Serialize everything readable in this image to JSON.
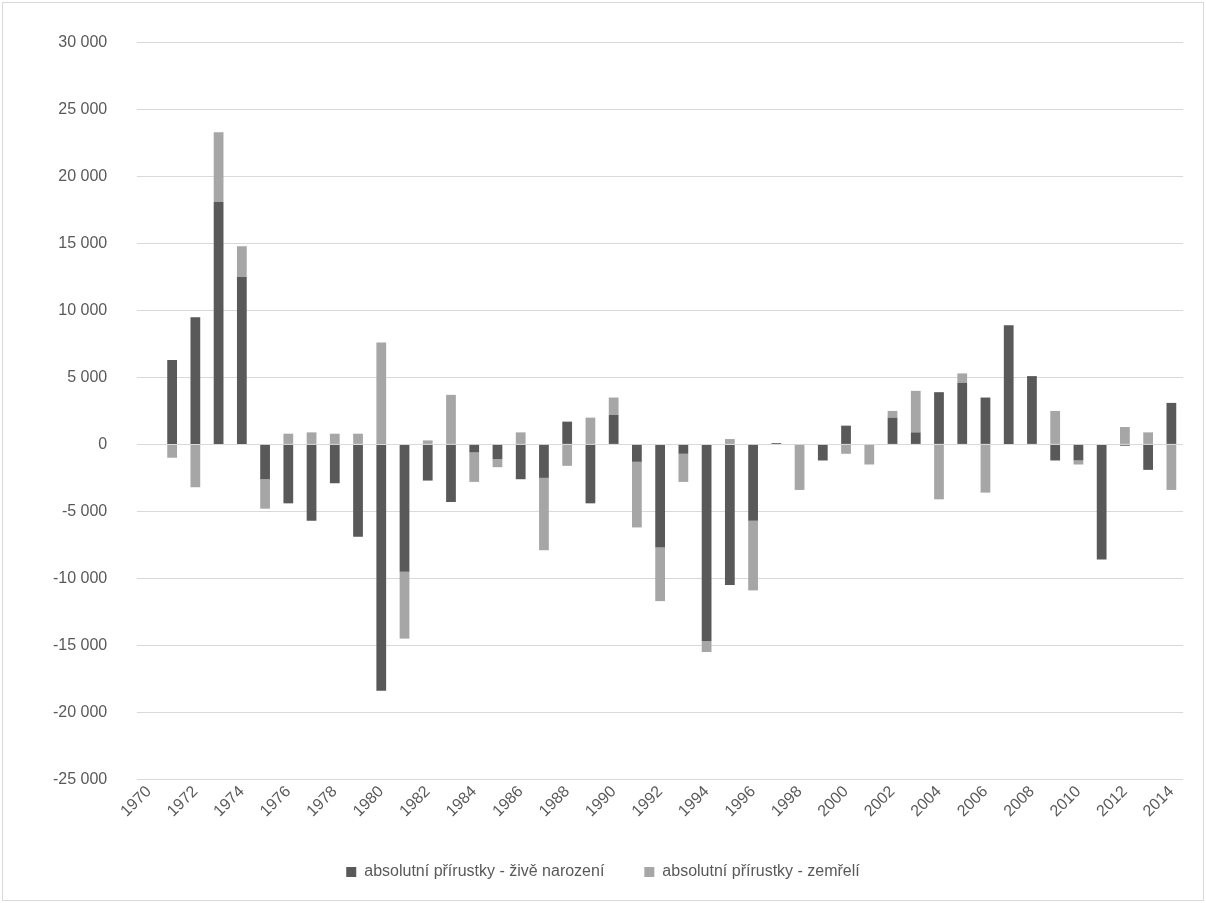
{
  "chart_data": {
    "type": "bar",
    "stacked": true,
    "grid": "y",
    "legend": "bottom",
    "categories": [
      "1970",
      null,
      "1972",
      null,
      "1974",
      null,
      "1976",
      null,
      "1978",
      null,
      "1980",
      null,
      "1982",
      null,
      "1984",
      null,
      "1986",
      null,
      "1988",
      null,
      "1990",
      null,
      "1992",
      null,
      "1994",
      null,
      "1996",
      null,
      "1998",
      null,
      "2000",
      null,
      "2002",
      null,
      "2004",
      null,
      "2006",
      null,
      "2008",
      null,
      "2010",
      null,
      "2012",
      null,
      "2014"
    ],
    "ylim": [
      -25000,
      30000
    ],
    "yticks": [
      {
        "value": -25000,
        "label": "-25 000"
      },
      {
        "value": -20000,
        "label": "-20 000"
      },
      {
        "value": -15000,
        "label": "-15 000"
      },
      {
        "value": -10000,
        "label": "-10 000"
      },
      {
        "value": -5000,
        "label": "-5 000"
      },
      0,
      {
        "value": 5000,
        "label": "5 000"
      },
      {
        "value": 10000,
        "label": "10 000"
      },
      {
        "value": 15000,
        "label": "15 000"
      },
      {
        "value": 20000,
        "label": "20 000"
      },
      {
        "value": 25000,
        "label": "25 000"
      },
      {
        "value": 30000,
        "label": "30 000"
      }
    ],
    "series": [
      {
        "name": "absolutní přírustky - živě narození",
        "color": "#595959",
        "values": [
          null,
          6300,
          9500,
          18100,
          12500,
          -2600,
          -4400,
          -5700,
          -2900,
          -6900,
          -18400,
          -9500,
          -2700,
          -4300,
          -600,
          -1100,
          -2600,
          -2500,
          1700,
          -4400,
          2200,
          -1300,
          -7700,
          -700,
          -14700,
          -10500,
          -5700,
          100,
          0,
          -1200,
          1400,
          0,
          2000,
          900,
          3900,
          4600,
          3500,
          8900,
          5100,
          -1200,
          -1200,
          -8600,
          -100,
          -1900,
          3100
        ]
      },
      {
        "name": "absolutní přírustky - zemřelí",
        "color": "#a6a6a6",
        "values": [
          null,
          -1000,
          -3200,
          5200,
          2300,
          -2200,
          800,
          900,
          800,
          800,
          7600,
          -5000,
          300,
          3700,
          -2200,
          -600,
          900,
          -5400,
          -1600,
          2000,
          1300,
          -4900,
          -4000,
          -2100,
          -800,
          400,
          -5200,
          0,
          -3400,
          0,
          -700,
          -1500,
          500,
          3100,
          -4100,
          700,
          -3600,
          0,
          0,
          2500,
          -300,
          0,
          1300,
          900,
          -3400
        ]
      }
    ]
  }
}
